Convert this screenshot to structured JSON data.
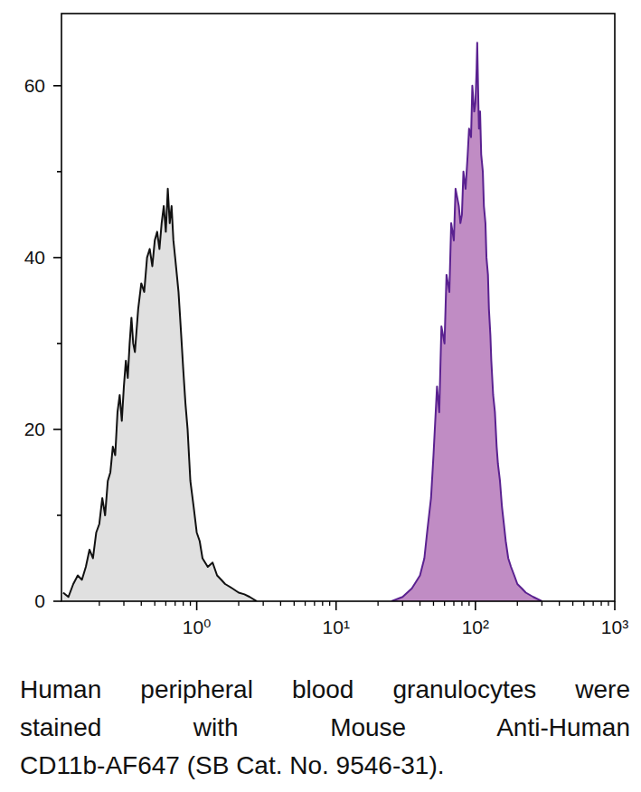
{
  "chart_data": {
    "type": "area",
    "log": "x",
    "grid": false,
    "xlim": [
      0.107,
      1000
    ],
    "xticks": [
      {
        "value": 1,
        "label": "10⁰"
      },
      {
        "value": 10,
        "label": "10¹"
      },
      {
        "value": 100,
        "label": "10²"
      },
      {
        "value": 1000,
        "label": "10³"
      }
    ],
    "ylim": [
      0,
      68.4
    ],
    "yticks": [
      0,
      20,
      40,
      60
    ],
    "caption": [
      "Human peripheral blood granulocytes were",
      "stained with Mouse Anti-Human",
      "CD11b-AF647 (SB Cat. No. 9546-31)."
    ],
    "series": [
      {
        "color": "#e0e0e0",
        "x": [
          0.11,
          0.12,
          0.13,
          0.14,
          0.15,
          0.16,
          0.17,
          0.18,
          0.19,
          0.2,
          0.21,
          0.22,
          0.23,
          0.24,
          0.25,
          0.26,
          0.27,
          0.28,
          0.29,
          0.3,
          0.31,
          0.32,
          0.33,
          0.34,
          0.35,
          0.36,
          0.38,
          0.4,
          0.42,
          0.44,
          0.46,
          0.48,
          0.5,
          0.52,
          0.54,
          0.56,
          0.58,
          0.6,
          0.62,
          0.64,
          0.66,
          0.68,
          0.7,
          0.72,
          0.74,
          0.76,
          0.78,
          0.8,
          0.83,
          0.86,
          0.9,
          0.95,
          1.0,
          1.05,
          1.1,
          1.2,
          1.3,
          1.4,
          1.5,
          1.6,
          1.8,
          2.0,
          2.2,
          2.4,
          2.7
        ],
        "values": [
          1,
          0.5,
          2,
          3,
          2.5,
          4,
          6,
          5,
          8,
          9,
          12,
          10,
          14,
          15,
          18,
          17,
          22,
          24,
          21,
          25,
          28,
          26,
          30,
          33,
          30,
          29,
          34,
          37,
          36,
          40,
          41,
          39,
          42,
          43,
          41,
          44,
          46,
          43,
          48,
          44,
          46,
          42,
          40,
          38,
          36,
          33,
          30,
          27,
          23,
          20,
          14,
          11,
          8,
          7,
          5,
          4,
          4.5,
          3,
          2.5,
          2,
          1.5,
          1,
          0.8,
          0.5,
          0
        ]
      },
      {
        "color": "#c08cc4",
        "x": [
          25,
          30,
          35,
          40,
          43,
          45,
          48,
          50,
          53,
          55,
          57,
          60,
          62,
          65,
          67,
          70,
          72,
          74,
          76,
          78,
          80,
          82,
          85,
          88,
          90,
          93,
          95,
          98,
          100,
          102,
          103,
          105,
          106,
          108,
          110,
          113,
          115,
          118,
          120,
          123,
          125,
          128,
          130,
          134,
          138,
          142,
          145,
          150,
          155,
          160,
          165,
          172,
          180,
          190,
          200,
          215,
          230,
          260,
          300
        ],
        "values": [
          0,
          0.5,
          1.5,
          3,
          5,
          8,
          12,
          17,
          25,
          22,
          32,
          30,
          38,
          36,
          44,
          42,
          48,
          47,
          46,
          44,
          45,
          50,
          48,
          52,
          55,
          54,
          60,
          57,
          58,
          62,
          65,
          58,
          55,
          57,
          52,
          50,
          46,
          44,
          40,
          38,
          34,
          31,
          28,
          24,
          22,
          18,
          16,
          14,
          11,
          9,
          7,
          5,
          4,
          3,
          2,
          1.5,
          1,
          0.5,
          0
        ]
      }
    ]
  }
}
